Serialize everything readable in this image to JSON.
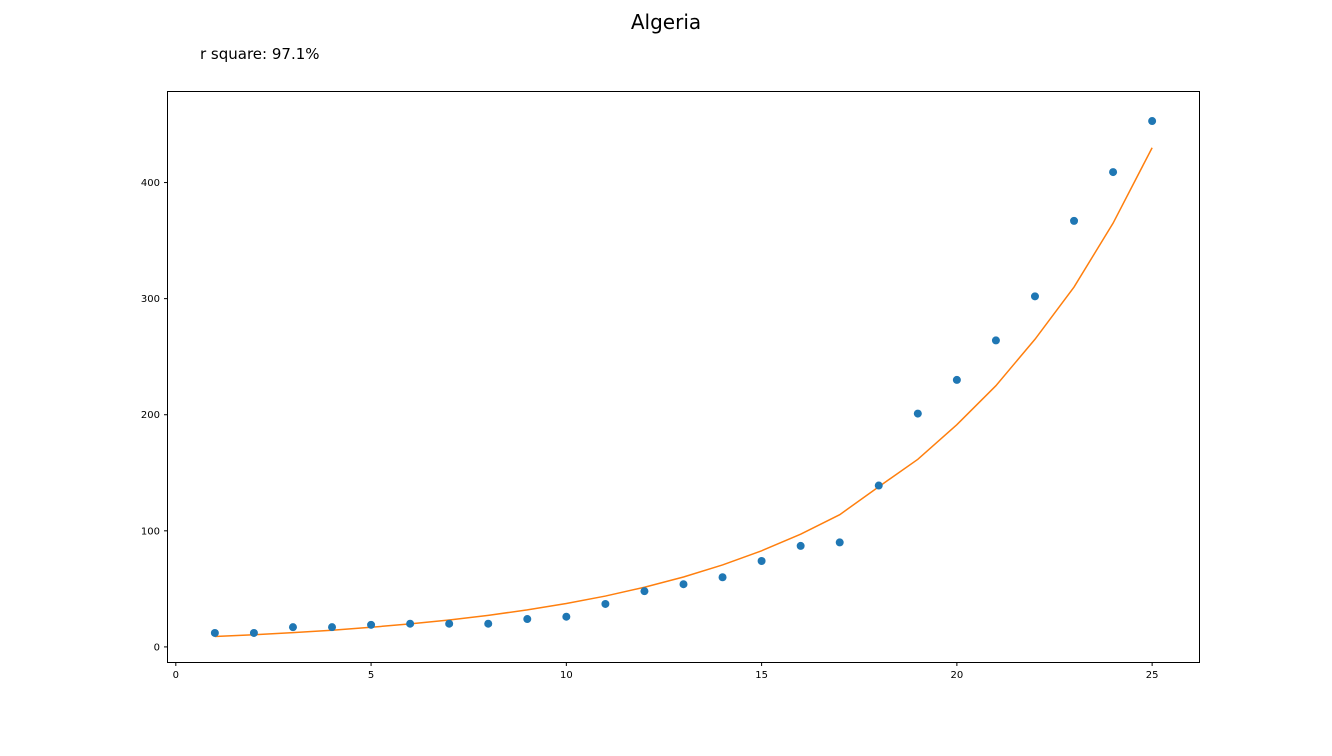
{
  "chart_data": {
    "type": "scatter",
    "title": "Algeria",
    "subtitle": "r square: 97.1%",
    "xlabel": "",
    "ylabel": "",
    "xlim": [
      -0.2,
      26.2
    ],
    "ylim": [
      -13,
      478
    ],
    "xticks": [
      0,
      5,
      10,
      15,
      20,
      25
    ],
    "yticks": [
      0,
      100,
      200,
      300,
      400
    ],
    "grid": false,
    "series": [
      {
        "kind": "scatter",
        "color": "#1f77b4",
        "x": [
          1,
          2,
          3,
          4,
          5,
          6,
          7,
          8,
          9,
          10,
          11,
          12,
          13,
          14,
          15,
          16,
          17,
          18,
          19,
          20,
          21,
          22,
          23,
          24,
          25
        ],
        "y": [
          12,
          12,
          17,
          17,
          19,
          20,
          20,
          20,
          24,
          26,
          37,
          48,
          54,
          60,
          74,
          87,
          90,
          139,
          201,
          230,
          264,
          302,
          367,
          409,
          453
        ]
      },
      {
        "kind": "line",
        "color": "#ff7f0e",
        "x": [
          1,
          2,
          3,
          4,
          5,
          6,
          7,
          8,
          9,
          10,
          11,
          12,
          13,
          14,
          15,
          16,
          17,
          18,
          19,
          20,
          21,
          22,
          23,
          24,
          25
        ],
        "y": [
          9,
          10.5,
          12.3,
          14.4,
          16.9,
          19.8,
          23.2,
          27.2,
          31.9,
          37.4,
          43.8,
          51.4,
          60.2,
          70.6,
          82.8,
          97.1,
          113.9,
          138,
          161.6,
          191.4,
          225,
          265,
          310,
          365,
          430
        ]
      }
    ]
  }
}
